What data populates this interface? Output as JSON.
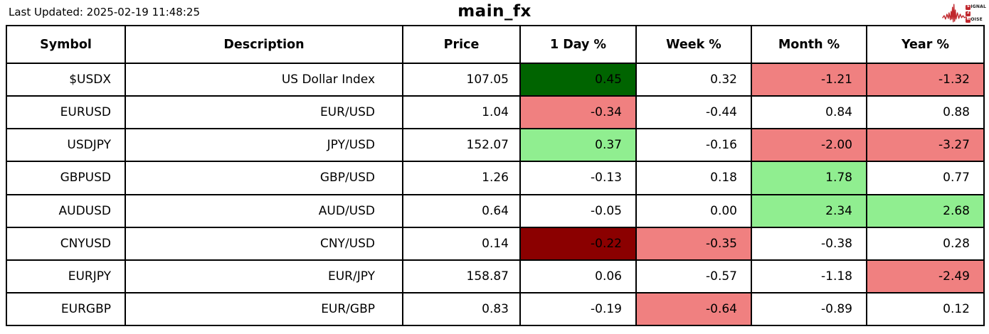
{
  "page": {
    "last_updated": "Last Updated: 2025-02-19 11:48:25",
    "title": "main_fx",
    "logo": {
      "line1_prefix": "S",
      "line1_rest": "IGNAL",
      "line2": "2",
      "line3_prefix": "N",
      "line3_rest": "OISE",
      "accent_color": "#c0272d"
    }
  },
  "palette": {
    "darkgreen": "#006400",
    "lightgreen": "#90ee90",
    "lightcoral": "#f08080",
    "darkred": "#8b0000",
    "none": "#ffffff"
  },
  "chart_data": {
    "type": "table",
    "title": "main_fx",
    "subtitle": "Last Updated: 2025-02-19 11:48:25",
    "columns": [
      "Symbol",
      "Description",
      "Price",
      "1 Day %",
      "Week %",
      "Month %",
      "Year %"
    ],
    "rows": [
      {
        "symbol": "$USDX",
        "description": "US Dollar Index",
        "price": "107.05",
        "changes": [
          {
            "value": "0.45",
            "bg": "darkgreen"
          },
          {
            "value": "0.32",
            "bg": "none"
          },
          {
            "value": "-1.21",
            "bg": "lightcoral"
          },
          {
            "value": "-1.32",
            "bg": "lightcoral"
          }
        ]
      },
      {
        "symbol": "EURUSD",
        "description": "EUR/USD",
        "price": "1.04",
        "changes": [
          {
            "value": "-0.34",
            "bg": "lightcoral"
          },
          {
            "value": "-0.44",
            "bg": "none"
          },
          {
            "value": "0.84",
            "bg": "none"
          },
          {
            "value": "0.88",
            "bg": "none"
          }
        ]
      },
      {
        "symbol": "USDJPY",
        "description": "JPY/USD",
        "price": "152.07",
        "changes": [
          {
            "value": "0.37",
            "bg": "lightgreen"
          },
          {
            "value": "-0.16",
            "bg": "none"
          },
          {
            "value": "-2.00",
            "bg": "lightcoral"
          },
          {
            "value": "-3.27",
            "bg": "lightcoral"
          }
        ]
      },
      {
        "symbol": "GBPUSD",
        "description": "GBP/USD",
        "price": "1.26",
        "changes": [
          {
            "value": "-0.13",
            "bg": "none"
          },
          {
            "value": "0.18",
            "bg": "none"
          },
          {
            "value": "1.78",
            "bg": "lightgreen"
          },
          {
            "value": "0.77",
            "bg": "none"
          }
        ]
      },
      {
        "symbol": "AUDUSD",
        "description": "AUD/USD",
        "price": "0.64",
        "changes": [
          {
            "value": "-0.05",
            "bg": "none"
          },
          {
            "value": "0.00",
            "bg": "none"
          },
          {
            "value": "2.34",
            "bg": "lightgreen"
          },
          {
            "value": "2.68",
            "bg": "lightgreen"
          }
        ]
      },
      {
        "symbol": "CNYUSD",
        "description": "CNY/USD",
        "price": "0.14",
        "changes": [
          {
            "value": "-0.22",
            "bg": "darkred"
          },
          {
            "value": "-0.35",
            "bg": "lightcoral"
          },
          {
            "value": "-0.38",
            "bg": "none"
          },
          {
            "value": "0.28",
            "bg": "none"
          }
        ]
      },
      {
        "symbol": "EURJPY",
        "description": "EUR/JPY",
        "price": "158.87",
        "changes": [
          {
            "value": "0.06",
            "bg": "none"
          },
          {
            "value": "-0.57",
            "bg": "none"
          },
          {
            "value": "-1.18",
            "bg": "none"
          },
          {
            "value": "-2.49",
            "bg": "lightcoral"
          }
        ]
      },
      {
        "symbol": "EURGBP",
        "description": "EUR/GBP",
        "price": "0.83",
        "changes": [
          {
            "value": "-0.19",
            "bg": "none"
          },
          {
            "value": "-0.64",
            "bg": "lightcoral"
          },
          {
            "value": "-0.89",
            "bg": "none"
          },
          {
            "value": "0.12",
            "bg": "none"
          }
        ]
      }
    ]
  }
}
